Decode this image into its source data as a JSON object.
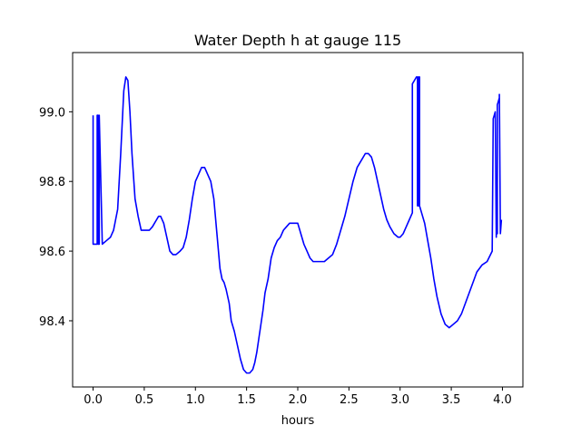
{
  "chart_data": {
    "type": "line",
    "title": "Water Depth h at gauge 115",
    "xlabel": "hours",
    "ylabel": "",
    "xlim": [
      -0.2,
      4.2
    ],
    "ylim": [
      98.21,
      99.17
    ],
    "xticks": [
      0.0,
      0.5,
      1.0,
      1.5,
      2.0,
      2.5,
      3.0,
      3.5,
      4.0
    ],
    "xtick_labels": [
      "0.0",
      "0.5",
      "1.0",
      "1.5",
      "2.0",
      "2.5",
      "3.0",
      "3.5",
      "4.0"
    ],
    "yticks": [
      98.4,
      98.6,
      98.8,
      99.0
    ],
    "ytick_labels": [
      "98.4",
      "98.6",
      "98.8",
      "99.0"
    ],
    "grid": false,
    "series": [
      {
        "color": "#0000ff",
        "x": [
          0.0,
          0.0,
          0.02,
          0.04,
          0.04,
          0.05,
          0.05,
          0.06,
          0.06,
          0.09,
          0.13,
          0.17,
          0.2,
          0.24,
          0.27,
          0.3,
          0.32,
          0.34,
          0.36,
          0.38,
          0.41,
          0.44,
          0.47,
          0.5,
          0.53,
          0.55,
          0.58,
          0.6,
          0.62,
          0.64,
          0.66,
          0.69,
          0.72,
          0.75,
          0.78,
          0.81,
          0.85,
          0.88,
          0.91,
          0.94,
          0.97,
          1.0,
          1.03,
          1.06,
          1.09,
          1.12,
          1.15,
          1.18,
          1.21,
          1.24,
          1.26,
          1.28,
          1.3,
          1.33,
          1.35,
          1.38,
          1.41,
          1.44,
          1.47,
          1.5,
          1.53,
          1.56,
          1.58,
          1.6,
          1.62,
          1.64,
          1.66,
          1.68,
          1.71,
          1.74,
          1.77,
          1.8,
          1.83,
          1.86,
          1.89,
          1.92,
          1.95,
          1.98,
          2.0,
          2.03,
          2.06,
          2.09,
          2.12,
          2.15,
          2.18,
          2.22,
          2.26,
          2.3,
          2.34,
          2.38,
          2.42,
          2.46,
          2.5,
          2.54,
          2.58,
          2.62,
          2.66,
          2.69,
          2.72,
          2.75,
          2.78,
          2.81,
          2.84,
          2.87,
          2.9,
          2.94,
          2.98,
          3.0,
          3.03,
          3.06,
          3.09,
          3.12,
          3.12,
          3.14,
          3.16,
          3.17,
          3.17,
          3.18,
          3.18,
          3.19,
          3.19,
          3.21,
          3.24,
          3.27,
          3.3,
          3.33,
          3.36,
          3.4,
          3.44,
          3.48,
          3.52,
          3.56,
          3.6,
          3.65,
          3.7,
          3.75,
          3.8,
          3.85,
          3.9,
          3.91,
          3.91,
          3.93,
          3.94,
          3.94,
          3.95,
          3.95,
          3.96,
          3.97,
          3.97,
          3.98,
          3.98,
          3.99,
          3.99
        ],
        "y": [
          98.99,
          98.62,
          98.62,
          98.62,
          98.99,
          98.99,
          98.62,
          98.62,
          98.99,
          98.62,
          98.63,
          98.64,
          98.66,
          98.72,
          98.88,
          99.06,
          99.1,
          99.09,
          99.0,
          98.88,
          98.75,
          98.7,
          98.66,
          98.66,
          98.66,
          98.66,
          98.67,
          98.68,
          98.69,
          98.7,
          98.7,
          98.68,
          98.64,
          98.6,
          98.59,
          98.59,
          98.6,
          98.61,
          98.64,
          98.69,
          98.75,
          98.8,
          98.82,
          98.84,
          98.84,
          98.82,
          98.8,
          98.75,
          98.65,
          98.55,
          98.52,
          98.51,
          98.49,
          98.45,
          98.4,
          98.37,
          98.33,
          98.29,
          98.26,
          98.25,
          98.25,
          98.26,
          98.28,
          98.31,
          98.35,
          98.39,
          98.43,
          98.48,
          98.52,
          98.58,
          98.61,
          98.63,
          98.64,
          98.66,
          98.67,
          98.68,
          98.68,
          98.68,
          98.68,
          98.65,
          98.62,
          98.6,
          98.58,
          98.57,
          98.57,
          98.57,
          98.57,
          98.58,
          98.59,
          98.62,
          98.66,
          98.7,
          98.75,
          98.8,
          98.84,
          98.86,
          98.88,
          98.88,
          98.87,
          98.84,
          98.8,
          98.76,
          98.72,
          98.69,
          98.67,
          98.65,
          98.64,
          98.64,
          98.65,
          98.67,
          98.69,
          98.71,
          99.08,
          99.09,
          99.1,
          99.1,
          98.73,
          98.73,
          99.1,
          99.1,
          98.73,
          98.71,
          98.68,
          98.63,
          98.58,
          98.52,
          98.47,
          98.42,
          98.39,
          98.38,
          98.39,
          98.4,
          98.42,
          98.46,
          98.5,
          98.54,
          98.56,
          98.57,
          98.6,
          98.98,
          98.98,
          99.0,
          98.64,
          98.65,
          98.65,
          99.02,
          99.03,
          99.04,
          99.05,
          98.65,
          98.65,
          98.69,
          98.69
        ]
      }
    ]
  }
}
